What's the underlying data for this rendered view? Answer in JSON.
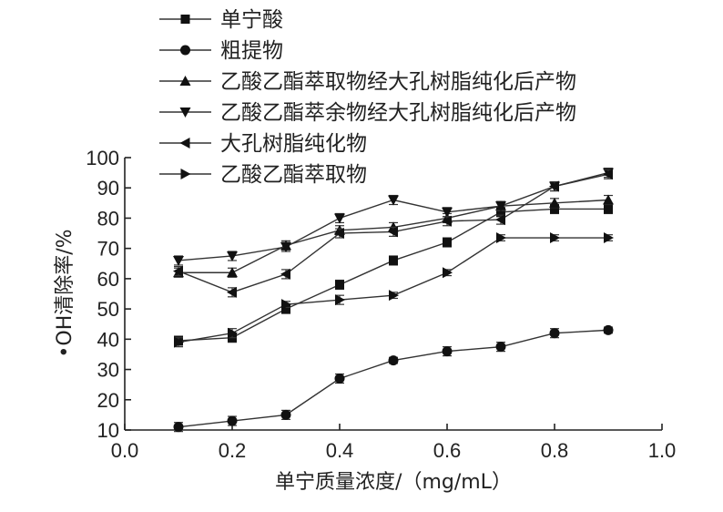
{
  "chart_data": {
    "type": "line",
    "title": "",
    "xlabel": "单宁质量浓度/（mg/mL）",
    "ylabel": "•OH清除率/%",
    "xlim": [
      0.0,
      1.0
    ],
    "ylim": [
      10,
      100
    ],
    "x_ticks": [
      "0.0",
      "0.2",
      "0.4",
      "0.6",
      "0.8",
      "1.0"
    ],
    "y_ticks": [
      "10",
      "20",
      "30",
      "40",
      "50",
      "60",
      "70",
      "80",
      "90",
      "100"
    ],
    "legend_position": "top-left",
    "grid": false,
    "x": [
      0.1,
      0.2,
      0.3,
      0.4,
      0.5,
      0.6,
      0.7,
      0.8,
      0.9
    ],
    "series": [
      {
        "name": "单宁酸",
        "marker": "square",
        "values": [
          39.5,
          40.5,
          50,
          58,
          66,
          72,
          82,
          83,
          83
        ],
        "errors": [
          1.5,
          1.5,
          1.5,
          1.5,
          1.5,
          1.5,
          1.5,
          1.5,
          1.5
        ]
      },
      {
        "name": "粗提物",
        "marker": "circle",
        "values": [
          11,
          13,
          15,
          27,
          33,
          36,
          37.5,
          42,
          43
        ],
        "errors": [
          1.5,
          1.5,
          1.5,
          1.5,
          1,
          1.5,
          1.5,
          1.5,
          1
        ]
      },
      {
        "name": "乙酸乙酯萃取物经大孔树脂纯化后产物",
        "marker": "triangle-up",
        "values": [
          62,
          62,
          71,
          76,
          77,
          80,
          84,
          85,
          86
        ],
        "errors": [
          1.5,
          1.5,
          1.5,
          1.5,
          1.5,
          1.5,
          1.5,
          1.5,
          1.5
        ]
      },
      {
        "name": "乙酸乙酯萃余物经大孔树脂纯化后产物",
        "marker": "triangle-down",
        "values": [
          66,
          67.5,
          70.5,
          80,
          86,
          82,
          84,
          90.5,
          95
        ],
        "errors": [
          1.5,
          1.5,
          1.5,
          1.5,
          1.5,
          1.5,
          1.5,
          1.5,
          1.5
        ]
      },
      {
        "name": "大孔树脂纯化物",
        "marker": "triangle-left",
        "values": [
          62.5,
          55.5,
          61.5,
          75,
          75.5,
          79,
          79.5,
          90.5,
          94.5
        ],
        "errors": [
          1.5,
          1.5,
          1.5,
          1.5,
          1.5,
          1.5,
          1.5,
          1.5,
          1.5
        ]
      },
      {
        "name": "乙酸乙酯萃取物",
        "marker": "triangle-right",
        "values": [
          39,
          42,
          51.5,
          53,
          54.5,
          62,
          73.5,
          73.5,
          73.5
        ],
        "errors": [
          1.5,
          1.5,
          1,
          1.5,
          1,
          1,
          1,
          1,
          1
        ]
      }
    ]
  }
}
